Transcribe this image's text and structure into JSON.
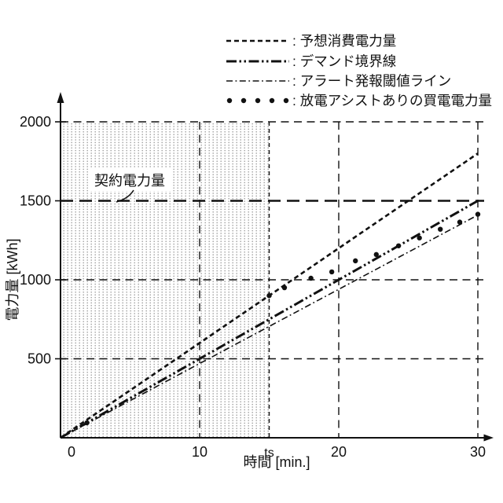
{
  "figure": {
    "background": "#ffffff",
    "ink": "#111111",
    "shade_dot_color": "#9b9b9b"
  },
  "legend": {
    "separator": ":",
    "items": [
      {
        "id": "predicted",
        "label": "予想消費電力量",
        "style": "dashed"
      },
      {
        "id": "demand",
        "label": "デマンド境界線",
        "style": "dash-dot-dot"
      },
      {
        "id": "alert",
        "label": "アラート発報閾値ライン",
        "style": "dash-dot"
      },
      {
        "id": "purchased",
        "label": "放電アシストありの買電電力量",
        "style": "dots"
      }
    ]
  },
  "chart_data": {
    "type": "line",
    "title": "",
    "xlabel": "時間 [min.]",
    "ylabel": "電力量 [kWh]",
    "xlim": [
      0,
      30
    ],
    "ylim": [
      0,
      2000
    ],
    "x_ticks": [
      {
        "value": 0,
        "label": "0"
      },
      {
        "value": 10,
        "label": "10"
      },
      {
        "value": 15,
        "label": "ts"
      },
      {
        "value": 20,
        "label": "20"
      },
      {
        "value": 30,
        "label": "30"
      }
    ],
    "y_ticks": [
      {
        "value": 500,
        "label": "500"
      },
      {
        "value": 1000,
        "label": "1000"
      },
      {
        "value": 1500,
        "label": "1500"
      },
      {
        "value": 2000,
        "label": "2000"
      }
    ],
    "gridlines": {
      "horizontal": [
        500,
        1000,
        2000
      ],
      "vertical": [
        10,
        20,
        30
      ]
    },
    "ts_marker": {
      "value": 15,
      "label": "ts"
    },
    "shaded_region": {
      "x_range": [
        0,
        15
      ],
      "y_range": [
        0,
        2000
      ],
      "fill": "dot-pattern"
    },
    "contract_power": {
      "value": 1500,
      "label": "契約電力量"
    },
    "series": [
      {
        "name": "予想消費電力量",
        "style": "dashed",
        "points": [
          [
            0,
            0
          ],
          [
            30,
            1800
          ]
        ]
      },
      {
        "name": "デマンド境界線",
        "style": "dash-dot-dot",
        "points": [
          [
            0,
            0
          ],
          [
            30,
            1500
          ]
        ]
      },
      {
        "name": "アラート発報閾値ライン",
        "style": "dash-dot",
        "points": [
          [
            0,
            0
          ],
          [
            30,
            1410
          ]
        ]
      },
      {
        "name": "放電アシストありの買電電力量",
        "style": "dots",
        "points": [
          [
            1.9,
            95
          ],
          [
            15,
            900
          ],
          [
            16.1,
            950
          ],
          [
            18,
            1010
          ],
          [
            19.5,
            1050
          ],
          [
            21.2,
            1120
          ],
          [
            22.7,
            1160
          ],
          [
            24.3,
            1215
          ],
          [
            25.8,
            1265
          ],
          [
            27.3,
            1320
          ],
          [
            28.7,
            1365
          ],
          [
            30,
            1415
          ]
        ]
      }
    ]
  }
}
